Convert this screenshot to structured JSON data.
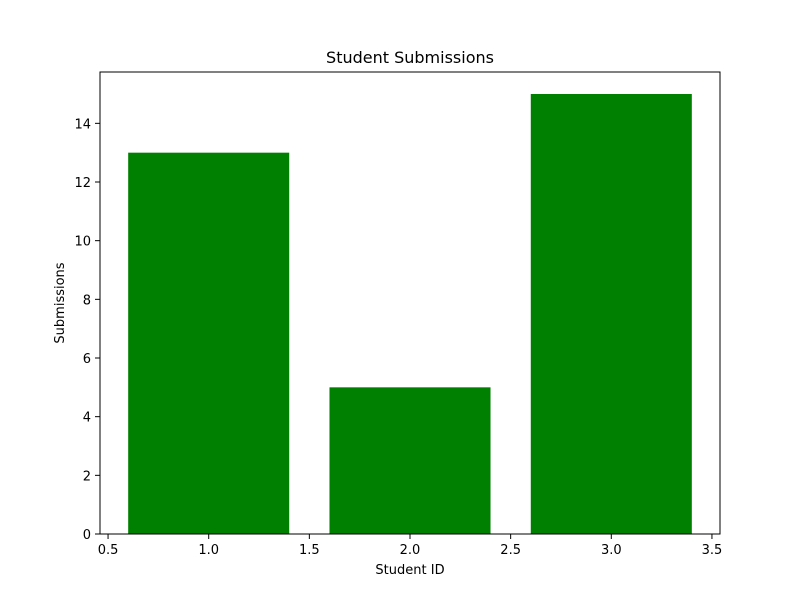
{
  "chart_data": {
    "type": "bar",
    "title": "Student Submissions",
    "xlabel": "Student ID",
    "ylabel": "Submissions",
    "x": [
      1.0,
      2.0,
      3.0
    ],
    "values": [
      13,
      5,
      15
    ],
    "bar_width": 0.8,
    "xlim": [
      0.46,
      3.54
    ],
    "ylim": [
      0,
      15.75
    ],
    "xticks": [
      0.5,
      1.0,
      1.5,
      2.0,
      2.5,
      3.0,
      3.5
    ],
    "xtick_labels": [
      "0.5",
      "1.0",
      "1.5",
      "2.0",
      "2.5",
      "3.0",
      "3.5"
    ],
    "yticks": [
      0,
      2,
      4,
      6,
      8,
      10,
      12,
      14
    ],
    "ytick_labels": [
      "0",
      "2",
      "4",
      "6",
      "8",
      "10",
      "12",
      "14"
    ],
    "bar_color": "#008000",
    "grid": false,
    "legend": "none"
  }
}
